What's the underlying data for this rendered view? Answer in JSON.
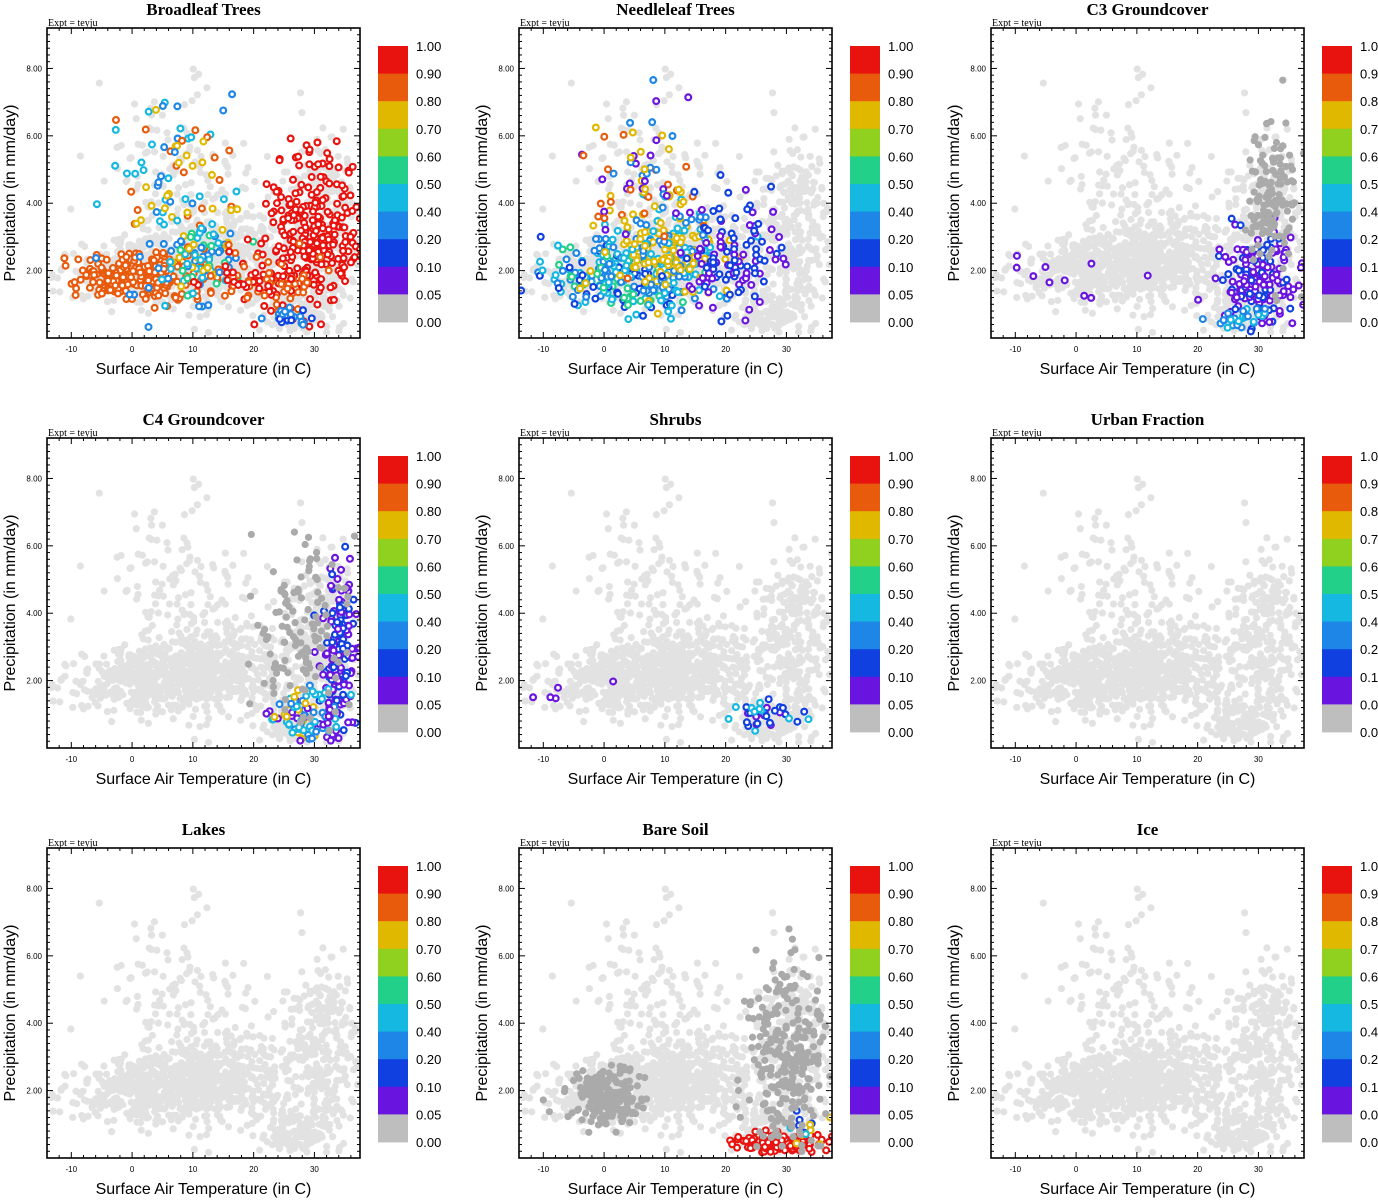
{
  "chart_data": {
    "type": "scatter",
    "layout": "3x3 grid",
    "expt_label": "Expt = teyju",
    "xlabel": "Surface Air Temperature (in C)",
    "ylabel": "Precipitation (in mm/day)",
    "xlim": [
      -14,
      37.5
    ],
    "ylim": [
      0,
      9.2
    ],
    "xticks": [
      -10,
      0,
      10,
      20,
      30
    ],
    "xtick_labels": [
      "-10",
      "0",
      "10",
      "20",
      "30"
    ],
    "yticks": [
      2,
      4,
      6,
      8
    ],
    "ytick_labels": [
      "2.00",
      "4.00",
      "6.00",
      "8.00"
    ],
    "colorbar": {
      "levels": [
        "1.00",
        "0.90",
        "0.80",
        "0.70",
        "0.60",
        "0.50",
        "0.40",
        "0.20",
        "0.10",
        "0.05",
        "0.00"
      ],
      "colors": [
        "#e8120e",
        "#e85a0c",
        "#e0b800",
        "#8fd11e",
        "#22d08a",
        "#14b8e0",
        "#1e86e6",
        "#1040e0",
        "#6a14e0",
        "#bebebe"
      ]
    },
    "background_color": "#e2e2e2",
    "zero_color": "#aaaaaa",
    "panels": [
      {
        "title": "Broadleaf Trees",
        "clusters": [
          {
            "cx": 1,
            "cy": 1.8,
            "sx": 5,
            "sy": 0.35,
            "n": 280,
            "colors": [
              "#e85a0c"
            ]
          },
          {
            "cx": 7,
            "cy": 4.2,
            "sx": 5.5,
            "sy": 1.4,
            "n": 95,
            "colors": [
              "#e85a0c",
              "#e0b800",
              "#1e86e6",
              "#14b8e0"
            ]
          },
          {
            "cx": 11,
            "cy": 2.4,
            "sx": 3.5,
            "sy": 0.6,
            "n": 90,
            "colors": [
              "#e0b800",
              "#14b8e0",
              "#22d08a",
              "#1e86e6"
            ]
          },
          {
            "cx": 30,
            "cy": 3.2,
            "sx": 4,
            "sy": 1.2,
            "n": 260,
            "colors": [
              "#e8120e"
            ]
          },
          {
            "cx": 22,
            "cy": 1.7,
            "sx": 5,
            "sy": 0.5,
            "n": 100,
            "colors": [
              "#e85a0c",
              "#e8120e"
            ]
          },
          {
            "cx": 26,
            "cy": 0.6,
            "sx": 2,
            "sy": 0.15,
            "n": 25,
            "colors": [
              "#1040e0",
              "#1e86e6"
            ]
          }
        ]
      },
      {
        "title": "Needleleaf Trees",
        "clusters": [
          {
            "cx": 2,
            "cy": 1.8,
            "sx": 6,
            "sy": 0.5,
            "n": 220,
            "colors": [
              "#1040e0",
              "#1e86e6",
              "#14b8e0",
              "#22d08a"
            ]
          },
          {
            "cx": 10,
            "cy": 2.5,
            "sx": 5,
            "sy": 0.7,
            "n": 220,
            "colors": [
              "#e0b800",
              "#e0b800",
              "#1e86e6",
              "#14b8e0"
            ]
          },
          {
            "cx": 6,
            "cy": 4.6,
            "sx": 5,
            "sy": 1.2,
            "n": 70,
            "colors": [
              "#e0b800",
              "#e85a0c",
              "#1e86e6",
              "#6a14e0"
            ]
          },
          {
            "cx": 21,
            "cy": 2.5,
            "sx": 4,
            "sy": 0.8,
            "n": 120,
            "colors": [
              "#6a14e0",
              "#1040e0"
            ]
          }
        ]
      },
      {
        "title": "C3 Groundcover",
        "clusters": [
          {
            "cx": 30,
            "cy": 1.8,
            "sx": 3.5,
            "sy": 0.7,
            "n": 170,
            "colors": [
              "#6a14e0",
              "#6a14e0",
              "#1040e0"
            ]
          },
          {
            "cx": 32,
            "cy": 4.2,
            "sx": 2,
            "sy": 1.2,
            "n": 130,
            "colors": [
              "#aaaaaa"
            ]
          },
          {
            "cx": 27,
            "cy": 0.6,
            "sx": 2.5,
            "sy": 0.2,
            "n": 25,
            "colors": [
              "#1e86e6",
              "#14b8e0"
            ]
          },
          {
            "cx": -5,
            "cy": 1.8,
            "sx": 6,
            "sy": 0.5,
            "n": 12,
            "colors": [
              "#6a14e0"
            ]
          }
        ]
      },
      {
        "title": "C4 Groundcover",
        "clusters": [
          {
            "cx": 34,
            "cy": 2.8,
            "sx": 1.4,
            "sy": 1.3,
            "n": 170,
            "colors": [
              "#6a14e0",
              "#6a14e0",
              "#1040e0"
            ]
          },
          {
            "cx": 29,
            "cy": 1,
            "sx": 3,
            "sy": 0.4,
            "n": 90,
            "colors": [
              "#6a14e0",
              "#1e86e6",
              "#14b8e0",
              "#e0b800"
            ]
          },
          {
            "cx": 28,
            "cy": 3.5,
            "sx": 4,
            "sy": 1.5,
            "n": 120,
            "colors": [
              "#aaaaaa"
            ]
          }
        ]
      },
      {
        "title": "Shrubs",
        "clusters": [
          {
            "cx": 26,
            "cy": 1,
            "sx": 2.5,
            "sy": 0.2,
            "n": 35,
            "colors": [
              "#6a14e0",
              "#1040e0",
              "#14b8e0"
            ]
          },
          {
            "cx": -8,
            "cy": 1.5,
            "sx": 4,
            "sy": 0.3,
            "n": 5,
            "colors": [
              "#6a14e0"
            ]
          }
        ]
      },
      {
        "title": "Urban Fraction",
        "clusters": []
      },
      {
        "title": "Lakes",
        "clusters": []
      },
      {
        "title": "Bare Soil",
        "clusters": [
          {
            "cx": 29,
            "cy": 0.45,
            "sx": 3.5,
            "sy": 0.15,
            "n": 130,
            "colors": [
              "#e8120e"
            ]
          },
          {
            "cx": 33,
            "cy": 0.9,
            "sx": 2,
            "sy": 0.3,
            "n": 14,
            "colors": [
              "#1040e0",
              "#14b8e0",
              "#e0b800"
            ]
          },
          {
            "cx": 0,
            "cy": 1.8,
            "sx": 3,
            "sy": 0.4,
            "n": 200,
            "colors": [
              "#aaaaaa"
            ]
          },
          {
            "cx": 30,
            "cy": 2.8,
            "sx": 3.5,
            "sy": 1.5,
            "n": 260,
            "colors": [
              "#aaaaaa"
            ]
          }
        ]
      },
      {
        "title": "Ice",
        "clusters": []
      }
    ]
  }
}
